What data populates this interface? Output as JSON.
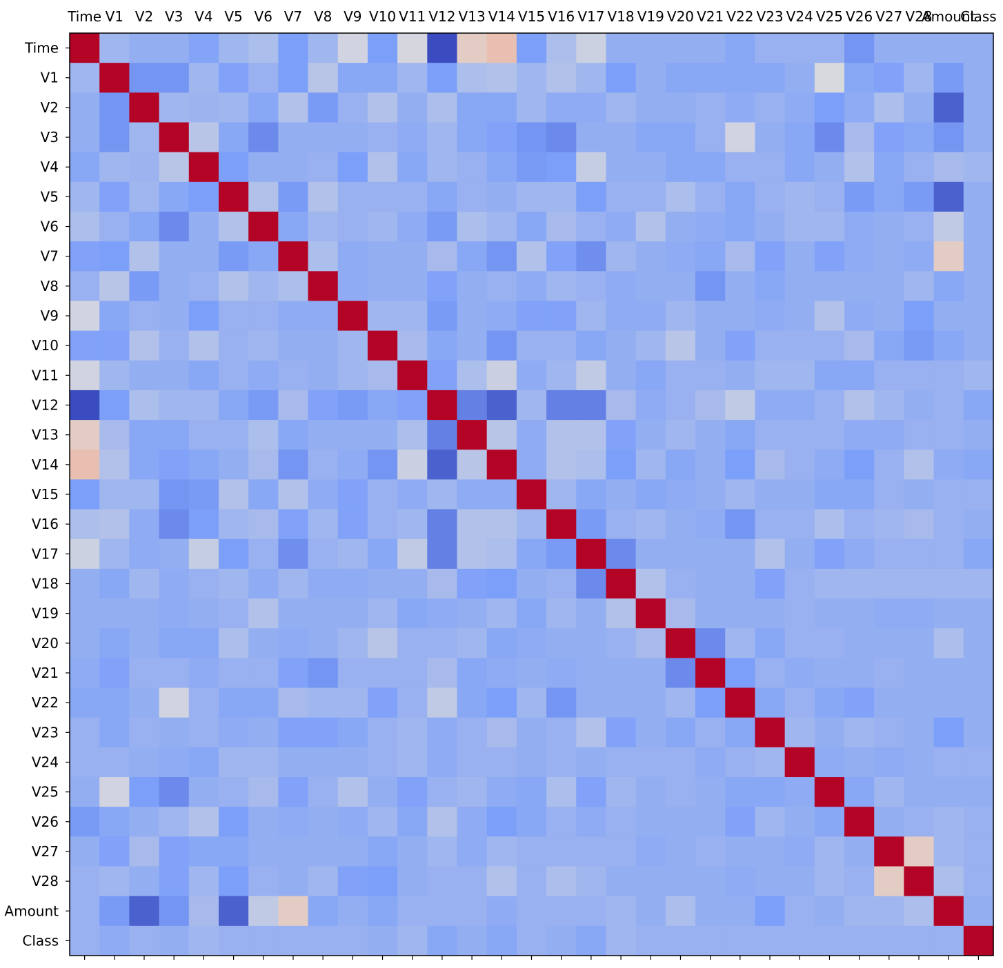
{
  "chart_data": {
    "type": "heatmap",
    "title": "",
    "xlabel": "",
    "ylabel": "",
    "colormap": "coolwarm",
    "vmin": -0.6,
    "vmax": 1.0,
    "labels": [
      "Time",
      "V1",
      "V2",
      "V3",
      "V4",
      "V5",
      "V6",
      "V7",
      "V8",
      "V9",
      "V10",
      "V11",
      "V12",
      "V13",
      "V14",
      "V15",
      "V16",
      "V17",
      "V18",
      "V19",
      "V20",
      "V21",
      "V22",
      "V23",
      "V24",
      "V25",
      "V26",
      "V27",
      "V28",
      "Amount",
      "Class"
    ],
    "x_tick_position": "top",
    "y_tick_position": "left",
    "grid": false,
    "legend": "none",
    "matrix": [
      [
        1.0,
        -0.05,
        -0.1,
        -0.1,
        -0.17,
        -0.05,
        0.0,
        -0.2,
        -0.05,
        0.15,
        -0.2,
        0.17,
        -0.6,
        0.3,
        0.38,
        -0.2,
        0.0,
        0.13,
        -0.1,
        -0.1,
        -0.1,
        -0.1,
        -0.15,
        -0.08,
        -0.08,
        -0.08,
        -0.25,
        -0.1,
        -0.1,
        -0.1,
        -0.1
      ],
      [
        -0.05,
        1.0,
        -0.25,
        -0.25,
        -0.05,
        -0.18,
        -0.08,
        -0.2,
        0.05,
        -0.15,
        -0.15,
        -0.05,
        -0.2,
        0.0,
        0.02,
        -0.05,
        0.02,
        -0.05,
        -0.2,
        -0.1,
        -0.15,
        -0.15,
        -0.15,
        -0.15,
        -0.1,
        0.18,
        -0.15,
        -0.18,
        -0.05,
        -0.22,
        -0.1
      ],
      [
        -0.1,
        -0.25,
        1.0,
        -0.05,
        -0.07,
        -0.05,
        -0.15,
        0.02,
        -0.22,
        -0.08,
        0.02,
        -0.1,
        0.0,
        -0.15,
        -0.15,
        -0.05,
        -0.12,
        -0.12,
        -0.05,
        -0.1,
        -0.1,
        -0.08,
        -0.12,
        -0.08,
        -0.12,
        -0.2,
        -0.12,
        0.0,
        -0.1,
        -0.5,
        -0.1
      ],
      [
        -0.1,
        -0.25,
        -0.05,
        1.0,
        0.05,
        -0.15,
        -0.3,
        -0.1,
        -0.1,
        -0.1,
        -0.08,
        -0.12,
        -0.05,
        -0.15,
        -0.18,
        -0.25,
        -0.3,
        -0.1,
        -0.1,
        -0.15,
        -0.15,
        -0.08,
        0.15,
        -0.1,
        -0.15,
        -0.3,
        -0.02,
        -0.18,
        -0.15,
        -0.25,
        -0.1
      ],
      [
        -0.15,
        -0.05,
        -0.07,
        0.05,
        1.0,
        -0.2,
        -0.1,
        -0.1,
        -0.08,
        -0.2,
        0.02,
        -0.15,
        -0.05,
        -0.08,
        -0.15,
        -0.22,
        -0.2,
        0.1,
        -0.1,
        -0.1,
        -0.15,
        -0.15,
        -0.08,
        -0.08,
        -0.15,
        -0.1,
        0.02,
        -0.15,
        -0.08,
        -0.02,
        -0.05
      ],
      [
        -0.05,
        -0.18,
        -0.05,
        -0.15,
        -0.2,
        1.0,
        0.02,
        -0.22,
        0.02,
        -0.08,
        -0.08,
        -0.08,
        -0.15,
        -0.08,
        -0.1,
        -0.05,
        -0.05,
        -0.2,
        -0.08,
        -0.08,
        0.0,
        -0.08,
        -0.15,
        -0.08,
        -0.05,
        -0.08,
        -0.22,
        -0.15,
        -0.22,
        -0.5,
        -0.1
      ],
      [
        0.0,
        -0.08,
        -0.15,
        -0.3,
        -0.1,
        0.02,
        1.0,
        -0.15,
        -0.05,
        -0.08,
        -0.05,
        -0.12,
        -0.22,
        0.0,
        -0.05,
        -0.15,
        -0.02,
        -0.08,
        -0.12,
        0.02,
        -0.1,
        -0.12,
        -0.15,
        -0.1,
        -0.05,
        -0.05,
        -0.12,
        -0.1,
        -0.08,
        0.08,
        -0.1
      ],
      [
        -0.18,
        -0.2,
        0.02,
        -0.1,
        -0.1,
        -0.22,
        -0.15,
        1.0,
        0.0,
        -0.12,
        -0.1,
        -0.1,
        -0.02,
        -0.15,
        -0.25,
        0.02,
        -0.18,
        -0.28,
        -0.05,
        -0.1,
        -0.12,
        -0.15,
        -0.02,
        -0.18,
        -0.1,
        -0.18,
        -0.12,
        -0.1,
        -0.12,
        0.3,
        -0.1
      ],
      [
        -0.08,
        0.05,
        -0.22,
        -0.1,
        -0.08,
        0.02,
        -0.05,
        0.0,
        1.0,
        -0.12,
        -0.1,
        -0.1,
        -0.18,
        -0.1,
        -0.08,
        -0.12,
        -0.05,
        -0.08,
        -0.12,
        -0.1,
        -0.1,
        -0.25,
        -0.1,
        -0.15,
        -0.1,
        -0.1,
        -0.1,
        -0.1,
        -0.05,
        -0.15,
        -0.1
      ],
      [
        0.15,
        -0.15,
        -0.08,
        -0.1,
        -0.2,
        -0.08,
        -0.08,
        -0.12,
        -0.12,
        1.0,
        -0.05,
        -0.05,
        -0.22,
        -0.1,
        -0.12,
        -0.18,
        -0.18,
        -0.05,
        -0.12,
        -0.12,
        -0.05,
        -0.1,
        -0.1,
        -0.12,
        -0.1,
        0.02,
        -0.12,
        -0.1,
        -0.2,
        -0.1,
        -0.1
      ],
      [
        -0.18,
        -0.18,
        0.02,
        -0.08,
        0.02,
        -0.08,
        -0.05,
        -0.1,
        -0.1,
        -0.05,
        1.0,
        -0.02,
        -0.15,
        -0.1,
        -0.25,
        -0.08,
        -0.08,
        -0.15,
        -0.1,
        -0.05,
        0.05,
        -0.1,
        -0.18,
        -0.08,
        -0.08,
        -0.08,
        -0.02,
        -0.15,
        -0.22,
        -0.15,
        -0.1
      ],
      [
        0.15,
        -0.05,
        -0.1,
        -0.1,
        -0.15,
        -0.08,
        -0.12,
        -0.08,
        -0.1,
        -0.05,
        -0.02,
        1.0,
        -0.18,
        0.0,
        0.12,
        -0.12,
        -0.05,
        0.08,
        -0.1,
        -0.15,
        -0.08,
        -0.08,
        -0.1,
        -0.05,
        -0.05,
        -0.15,
        -0.15,
        -0.08,
        -0.08,
        -0.08,
        -0.05
      ],
      [
        -0.6,
        -0.2,
        0.0,
        -0.05,
        -0.05,
        -0.15,
        -0.22,
        -0.02,
        -0.18,
        -0.22,
        -0.15,
        -0.18,
        1.0,
        -0.35,
        -0.5,
        -0.05,
        -0.35,
        -0.35,
        -0.02,
        -0.12,
        -0.08,
        -0.02,
        0.08,
        -0.12,
        -0.12,
        -0.08,
        0.02,
        -0.05,
        -0.1,
        -0.08,
        -0.15
      ],
      [
        0.3,
        -0.02,
        -0.15,
        -0.15,
        -0.08,
        -0.08,
        0.0,
        -0.15,
        -0.1,
        -0.1,
        -0.1,
        0.0,
        -0.35,
        1.0,
        0.05,
        -0.12,
        0.02,
        0.02,
        -0.18,
        -0.1,
        -0.05,
        -0.1,
        -0.15,
        -0.08,
        -0.08,
        -0.08,
        -0.12,
        -0.12,
        -0.08,
        -0.08,
        -0.1
      ],
      [
        0.38,
        0.02,
        -0.15,
        -0.18,
        -0.15,
        -0.1,
        -0.02,
        -0.25,
        -0.08,
        -0.12,
        -0.25,
        0.12,
        -0.5,
        0.05,
        1.0,
        -0.12,
        0.02,
        0.0,
        -0.2,
        -0.05,
        -0.15,
        -0.1,
        -0.2,
        -0.02,
        -0.08,
        -0.12,
        -0.2,
        -0.08,
        0.02,
        -0.12,
        -0.15
      ],
      [
        -0.2,
        -0.05,
        -0.05,
        -0.25,
        -0.22,
        0.02,
        -0.15,
        0.02,
        -0.12,
        -0.18,
        -0.08,
        -0.12,
        -0.05,
        -0.12,
        -0.12,
        1.0,
        -0.05,
        -0.15,
        -0.1,
        -0.15,
        -0.12,
        -0.1,
        -0.05,
        -0.1,
        -0.1,
        -0.15,
        -0.15,
        -0.08,
        -0.1,
        -0.08,
        -0.08
      ],
      [
        0.0,
        0.02,
        -0.12,
        -0.3,
        -0.2,
        -0.05,
        -0.02,
        -0.18,
        -0.05,
        -0.18,
        -0.08,
        -0.05,
        -0.35,
        0.02,
        0.02,
        -0.05,
        1.0,
        -0.22,
        -0.08,
        -0.05,
        -0.1,
        -0.12,
        -0.25,
        -0.08,
        -0.08,
        0.0,
        -0.08,
        -0.05,
        -0.02,
        -0.08,
        -0.1
      ],
      [
        0.13,
        -0.05,
        -0.12,
        -0.1,
        0.1,
        -0.2,
        -0.08,
        -0.28,
        -0.08,
        -0.05,
        -0.15,
        0.08,
        -0.35,
        0.02,
        0.0,
        -0.15,
        -0.22,
        1.0,
        -0.3,
        -0.1,
        -0.1,
        -0.1,
        -0.1,
        0.02,
        -0.1,
        -0.18,
        -0.12,
        -0.08,
        -0.08,
        -0.08,
        -0.15
      ],
      [
        -0.1,
        -0.15,
        -0.05,
        -0.12,
        -0.08,
        -0.05,
        -0.12,
        -0.05,
        -0.12,
        -0.12,
        -0.1,
        -0.1,
        -0.02,
        -0.18,
        -0.2,
        -0.1,
        -0.08,
        -0.3,
        1.0,
        0.02,
        -0.08,
        -0.1,
        -0.1,
        -0.18,
        -0.08,
        -0.05,
        -0.05,
        -0.05,
        -0.05,
        -0.05,
        -0.05
      ],
      [
        -0.1,
        -0.1,
        -0.1,
        -0.12,
        -0.1,
        -0.08,
        0.02,
        -0.1,
        -0.1,
        -0.1,
        -0.05,
        -0.15,
        -0.12,
        -0.1,
        -0.05,
        -0.15,
        -0.05,
        -0.1,
        0.02,
        1.0,
        -0.02,
        -0.1,
        -0.1,
        -0.1,
        -0.08,
        -0.1,
        -0.1,
        -0.12,
        -0.12,
        -0.1,
        -0.1
      ],
      [
        -0.1,
        -0.15,
        -0.1,
        -0.15,
        -0.15,
        0.0,
        -0.1,
        -0.12,
        -0.1,
        -0.05,
        0.05,
        -0.08,
        -0.08,
        -0.05,
        -0.15,
        -0.12,
        -0.1,
        -0.1,
        -0.08,
        -0.02,
        1.0,
        -0.3,
        -0.05,
        -0.15,
        -0.08,
        -0.08,
        -0.1,
        -0.1,
        -0.1,
        0.0,
        -0.1
      ],
      [
        -0.12,
        -0.18,
        -0.08,
        -0.08,
        -0.12,
        -0.08,
        -0.08,
        -0.18,
        -0.25,
        -0.08,
        -0.08,
        -0.08,
        -0.02,
        -0.15,
        -0.12,
        -0.1,
        -0.12,
        -0.1,
        -0.1,
        -0.1,
        -0.3,
        1.0,
        -0.2,
        -0.08,
        -0.12,
        -0.1,
        -0.1,
        -0.08,
        -0.1,
        -0.1,
        -0.1
      ],
      [
        -0.15,
        -0.15,
        -0.1,
        0.15,
        -0.08,
        -0.15,
        -0.15,
        -0.02,
        -0.05,
        -0.05,
        -0.18,
        -0.08,
        0.08,
        -0.15,
        -0.2,
        -0.05,
        -0.25,
        -0.1,
        -0.1,
        -0.1,
        -0.05,
        -0.2,
        1.0,
        -0.15,
        -0.08,
        -0.15,
        -0.18,
        -0.1,
        -0.1,
        -0.1,
        -0.1
      ],
      [
        -0.08,
        -0.15,
        -0.08,
        -0.1,
        -0.08,
        -0.12,
        -0.1,
        -0.18,
        -0.18,
        -0.15,
        -0.08,
        -0.05,
        -0.12,
        -0.08,
        -0.02,
        -0.1,
        -0.08,
        0.02,
        -0.18,
        -0.1,
        -0.15,
        -0.08,
        -0.15,
        1.0,
        -0.05,
        -0.1,
        -0.05,
        -0.08,
        -0.1,
        -0.2,
        -0.1
      ],
      [
        -0.08,
        -0.08,
        -0.1,
        -0.12,
        -0.15,
        -0.05,
        -0.05,
        -0.1,
        -0.1,
        -0.1,
        -0.08,
        -0.05,
        -0.12,
        -0.08,
        -0.08,
        -0.1,
        -0.08,
        -0.1,
        -0.08,
        -0.08,
        -0.08,
        -0.12,
        -0.08,
        -0.05,
        1.0,
        -0.12,
        -0.1,
        -0.12,
        -0.1,
        -0.08,
        -0.08
      ],
      [
        -0.1,
        0.15,
        -0.2,
        -0.3,
        -0.1,
        -0.08,
        -0.02,
        -0.18,
        -0.08,
        0.02,
        -0.1,
        -0.18,
        -0.08,
        -0.05,
        -0.12,
        -0.15,
        0.0,
        -0.18,
        -0.05,
        -0.1,
        -0.08,
        -0.1,
        -0.15,
        -0.15,
        -0.12,
        1.0,
        -0.15,
        -0.05,
        -0.1,
        -0.1,
        -0.1
      ],
      [
        -0.22,
        -0.15,
        -0.1,
        -0.05,
        0.02,
        -0.2,
        -0.1,
        -0.12,
        -0.1,
        -0.12,
        -0.05,
        -0.15,
        0.02,
        -0.12,
        -0.2,
        -0.15,
        -0.08,
        -0.12,
        -0.08,
        -0.1,
        -0.1,
        -0.1,
        -0.18,
        -0.05,
        -0.1,
        -0.15,
        1.0,
        -0.1,
        -0.08,
        -0.05,
        -0.08
      ],
      [
        -0.1,
        -0.18,
        -0.02,
        -0.18,
        -0.15,
        -0.15,
        -0.1,
        -0.1,
        -0.1,
        -0.1,
        -0.15,
        -0.1,
        -0.05,
        -0.12,
        -0.05,
        -0.08,
        -0.08,
        -0.08,
        -0.08,
        -0.12,
        -0.1,
        -0.08,
        -0.1,
        -0.1,
        -0.12,
        -0.05,
        -0.1,
        1.0,
        0.3,
        -0.05,
        -0.08
      ],
      [
        -0.08,
        -0.05,
        -0.1,
        -0.18,
        -0.05,
        -0.2,
        -0.08,
        -0.1,
        -0.05,
        -0.18,
        -0.2,
        -0.1,
        -0.08,
        -0.08,
        0.02,
        -0.08,
        0.0,
        -0.05,
        -0.1,
        -0.1,
        -0.1,
        -0.1,
        -0.12,
        -0.1,
        -0.1,
        -0.05,
        -0.08,
        0.3,
        1.0,
        0.0,
        -0.08
      ],
      [
        -0.08,
        -0.22,
        -0.5,
        -0.25,
        -0.02,
        -0.5,
        0.08,
        0.3,
        -0.15,
        -0.1,
        -0.15,
        -0.08,
        -0.08,
        -0.08,
        -0.12,
        -0.08,
        -0.08,
        -0.08,
        -0.05,
        -0.1,
        0.0,
        -0.1,
        -0.1,
        -0.2,
        -0.08,
        -0.1,
        -0.05,
        -0.05,
        0.0,
        1.0,
        -0.1
      ],
      [
        -0.08,
        -0.12,
        -0.08,
        -0.1,
        -0.05,
        -0.08,
        -0.08,
        -0.08,
        -0.08,
        -0.08,
        -0.1,
        -0.05,
        -0.15,
        -0.1,
        -0.15,
        -0.08,
        -0.1,
        -0.15,
        -0.05,
        -0.08,
        -0.08,
        -0.08,
        -0.08,
        -0.08,
        -0.08,
        -0.08,
        -0.08,
        -0.08,
        -0.08,
        -0.08,
        1.0
      ]
    ]
  }
}
